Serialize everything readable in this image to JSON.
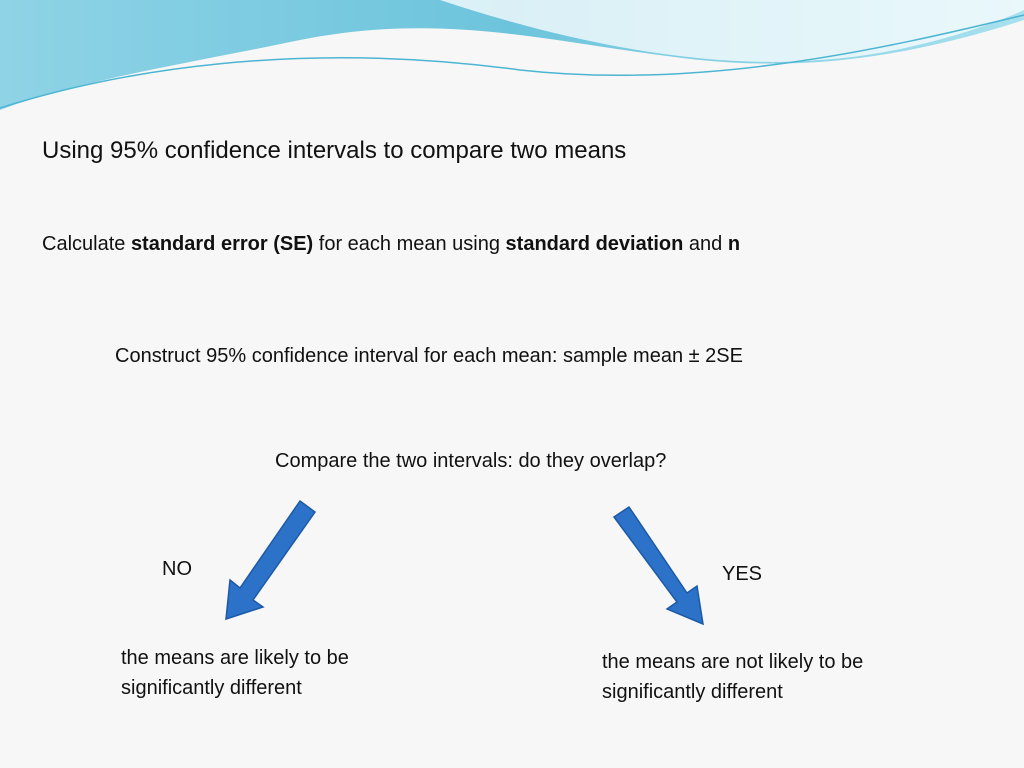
{
  "title": "Using 95% confidence intervals to compare two means",
  "steps": [
    {
      "segments": [
        {
          "text": "Calculate ",
          "bold": false
        },
        {
          "text": "standard error (SE)",
          "bold": true
        },
        {
          "text": " for each mean using ",
          "bold": false
        },
        {
          "text": "standard deviation",
          "bold": true
        },
        {
          "text": " and ",
          "bold": false
        },
        {
          "text": "n",
          "bold": true
        }
      ]
    },
    {
      "segments": [
        {
          "text": "Construct 95% confidence interval for each mean: sample mean ± 2SE",
          "bold": false
        }
      ]
    },
    {
      "segments": [
        {
          "text": "Compare the two intervals: do they overlap?",
          "bold": false
        }
      ]
    }
  ],
  "branches": [
    {
      "label": "NO",
      "outcome": [
        "the means are likely to be",
        "significantly different"
      ]
    },
    {
      "label": "YES",
      "outcome": [
        "the means are not likely to be",
        "significantly different"
      ]
    }
  ]
}
